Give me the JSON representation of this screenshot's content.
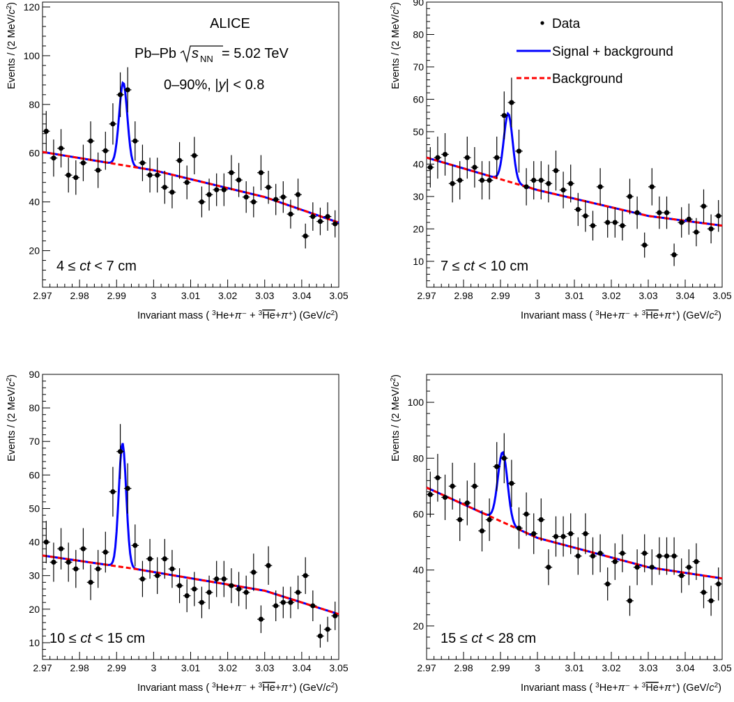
{
  "colors": {
    "signal": "#0000ff",
    "background": "#ff0000",
    "data": "#000000"
  },
  "annotations": {
    "experiment": "ALICE",
    "system_prefix": "Pb–Pb ",
    "sqrt_s_sub": "NN",
    "energy": " = 5.02 TeV",
    "centrality_prefix": "0–90%, |",
    "rapidity_var": "y",
    "centrality_suffix": "| < 0.8"
  },
  "legend": {
    "data": "Data",
    "signal": "Signal + background",
    "background": "Background"
  },
  "chart_data": [
    {
      "type": "scatter",
      "panel_label": "4 ≤ ct < 7 cm",
      "xlabel": "Invariant mass ( 3He+π− + 3He-bar+π+) (GeV/c2)",
      "ylabel": "Events / (2 MeV/c2)",
      "xlim": [
        2.97,
        3.05
      ],
      "ylim": [
        5,
        122
      ],
      "xticks": [
        "2.97",
        "2.98",
        "2.99",
        "3",
        "3.01",
        "3.02",
        "3.03",
        "3.04",
        "3.05"
      ],
      "yticks": [
        20,
        40,
        60,
        80,
        100,
        120
      ],
      "background_fit": [
        [
          2.97,
          60.5
        ],
        [
          3.0,
          53
        ],
        [
          3.03,
          42
        ],
        [
          3.05,
          31.5
        ]
      ],
      "peak": {
        "mean": 2.9918,
        "sigma": 0.0011,
        "amplitude": 34
      },
      "x": [
        2.971,
        2.973,
        2.975,
        2.977,
        2.979,
        2.981,
        2.983,
        2.985,
        2.987,
        2.989,
        2.991,
        2.993,
        2.995,
        2.997,
        2.999,
        3.001,
        3.003,
        3.005,
        3.007,
        3.009,
        3.011,
        3.013,
        3.015,
        3.017,
        3.019,
        3.021,
        3.023,
        3.025,
        3.027,
        3.029,
        3.031,
        3.033,
        3.035,
        3.037,
        3.039,
        3.041,
        3.043,
        3.045,
        3.047,
        3.049
      ],
      "y": [
        69,
        58,
        62,
        51,
        50,
        56,
        65,
        53,
        61,
        72,
        84,
        86,
        65,
        56,
        51,
        51,
        46,
        44,
        57,
        48,
        59,
        40,
        43,
        45,
        45,
        52,
        49,
        42,
        40,
        52,
        46,
        41,
        42,
        35,
        43,
        26,
        34,
        32,
        34,
        31
      ]
    },
    {
      "type": "scatter",
      "panel_label": "7 ≤ ct < 10 cm",
      "xlabel": "Invariant mass ( 3He+π− + 3He-bar+π+) (GeV/c2)",
      "ylabel": "Events / (2 MeV/c2)",
      "xlim": [
        2.97,
        3.05
      ],
      "ylim": [
        2,
        90
      ],
      "xticks": [
        "2.97",
        "2.98",
        "2.99",
        "3",
        "3.01",
        "3.02",
        "3.03",
        "3.04",
        "3.05"
      ],
      "yticks": [
        10,
        20,
        30,
        40,
        50,
        60,
        70,
        80,
        90
      ],
      "background_fit": [
        [
          2.97,
          42
        ],
        [
          3.0,
          32
        ],
        [
          3.03,
          24
        ],
        [
          3.05,
          21
        ]
      ],
      "peak": {
        "mean": 2.9921,
        "sigma": 0.0012,
        "amplitude": 21
      },
      "x": [
        2.971,
        2.973,
        2.975,
        2.977,
        2.979,
        2.981,
        2.983,
        2.985,
        2.987,
        2.989,
        2.991,
        2.993,
        2.995,
        2.997,
        2.999,
        3.001,
        3.003,
        3.005,
        3.007,
        3.009,
        3.011,
        3.013,
        3.015,
        3.017,
        3.019,
        3.021,
        3.023,
        3.025,
        3.027,
        3.029,
        3.031,
        3.033,
        3.035,
        3.037,
        3.039,
        3.041,
        3.043,
        3.045,
        3.047,
        3.049
      ],
      "y": [
        39,
        42,
        43,
        34,
        35,
        42,
        39,
        35,
        35,
        42,
        55,
        59,
        44,
        33,
        35,
        35,
        34,
        38,
        32,
        34,
        26,
        24,
        21,
        33,
        22,
        22,
        21,
        30,
        25,
        15,
        33,
        25,
        25,
        12,
        22,
        23,
        19,
        27,
        20,
        24
      ]
    },
    {
      "type": "scatter",
      "panel_label": "10 ≤ ct < 15 cm",
      "xlabel": "Invariant mass ( 3He+π− + 3He-bar+π+) (GeV/c2)",
      "ylabel": "Events / (2 MeV/c2)",
      "xlim": [
        2.97,
        3.05
      ],
      "ylim": [
        5,
        90
      ],
      "xticks": [
        "2.97",
        "2.98",
        "2.99",
        "3",
        "3.01",
        "3.02",
        "3.03",
        "3.04",
        "3.05"
      ],
      "yticks": [
        10,
        20,
        30,
        40,
        50,
        60,
        70,
        80,
        90
      ],
      "background_fit": [
        [
          2.97,
          36
        ],
        [
          2.995,
          32
        ],
        [
          3.03,
          25.5
        ],
        [
          3.05,
          18.5
        ]
      ],
      "peak": {
        "mean": 2.9916,
        "sigma": 0.001,
        "amplitude": 37
      },
      "x": [
        2.971,
        2.973,
        2.975,
        2.977,
        2.979,
        2.981,
        2.983,
        2.985,
        2.987,
        2.989,
        2.991,
        2.993,
        2.995,
        2.997,
        2.999,
        3.001,
        3.003,
        3.005,
        3.007,
        3.009,
        3.011,
        3.013,
        3.015,
        3.017,
        3.019,
        3.021,
        3.023,
        3.025,
        3.027,
        3.029,
        3.031,
        3.033,
        3.035,
        3.037,
        3.039,
        3.041,
        3.043,
        3.045,
        3.047,
        3.049
      ],
      "y": [
        40,
        34,
        38,
        34,
        32,
        38,
        28,
        32,
        37,
        55,
        67,
        56,
        39,
        29,
        35,
        30,
        35,
        32,
        27,
        24,
        26,
        22,
        25,
        29,
        29,
        27,
        26,
        25,
        31,
        17,
        33,
        21,
        22,
        22,
        25,
        30,
        21,
        12,
        14,
        18
      ]
    },
    {
      "type": "scatter",
      "panel_label": "15 ≤ ct < 28 cm",
      "xlabel": "Invariant mass ( 3He+π− + 3He-bar+π+) (GeV/c2)",
      "ylabel": "Events / (2 MeV/c2)",
      "xlim": [
        2.97,
        3.05
      ],
      "ylim": [
        8,
        110
      ],
      "xticks": [
        "2.97",
        "2.98",
        "2.99",
        "3",
        "3.01",
        "3.02",
        "3.03",
        "3.04",
        "3.05"
      ],
      "yticks": [
        20,
        40,
        60,
        80,
        100
      ],
      "background_fit": [
        [
          2.97,
          69.5
        ],
        [
          3.0,
          51.5
        ],
        [
          3.03,
          41
        ],
        [
          3.05,
          37
        ]
      ],
      "peak": {
        "mean": 2.9906,
        "sigma": 0.0013,
        "amplitude": 25
      },
      "x": [
        2.971,
        2.973,
        2.975,
        2.977,
        2.979,
        2.981,
        2.983,
        2.985,
        2.987,
        2.989,
        2.991,
        2.993,
        2.995,
        2.997,
        2.999,
        3.001,
        3.003,
        3.005,
        3.007,
        3.009,
        3.011,
        3.013,
        3.015,
        3.017,
        3.019,
        3.021,
        3.023,
        3.025,
        3.027,
        3.029,
        3.031,
        3.033,
        3.035,
        3.037,
        3.039,
        3.041,
        3.043,
        3.045,
        3.047,
        3.049
      ],
      "y": [
        67,
        73,
        66,
        70,
        58,
        64,
        70,
        54,
        58,
        77,
        80,
        71,
        55,
        60,
        53,
        58,
        41,
        52,
        52,
        53,
        45,
        53,
        45,
        46,
        35,
        43,
        46,
        29,
        41,
        46,
        41,
        45,
        45,
        45,
        38,
        41,
        43,
        32,
        29,
        35
      ]
    }
  ]
}
